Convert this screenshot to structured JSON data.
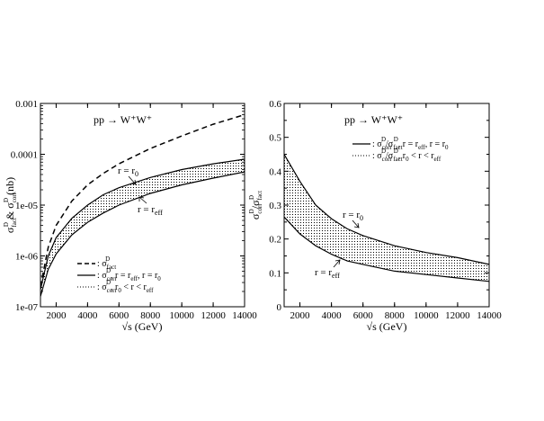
{
  "chart_data": [
    {
      "type": "line",
      "title": "pp → W⁺W⁺",
      "xlabel": "√s (GeV)",
      "ylabel": "σ_fact^D & σ_corr^D (nb)",
      "yscale": "log",
      "xlim": [
        1000,
        14000
      ],
      "ylim": [
        1e-07,
        0.001
      ],
      "x_ticks": [
        2000,
        4000,
        6000,
        8000,
        10000,
        12000,
        14000
      ],
      "x_tick_labels": [
        "2000",
        "4000",
        "6000",
        "8000",
        "10000",
        "12000",
        "14000"
      ],
      "y_ticks": [
        1e-07,
        1e-06,
        1e-05,
        0.0001,
        0.001
      ],
      "y_tick_labels": [
        "1e-07",
        "1e-06",
        "1e-05",
        "0.0001",
        "0.001"
      ],
      "x": [
        1000,
        1500,
        2000,
        3000,
        4000,
        5000,
        6000,
        8000,
        10000,
        12000,
        14000
      ],
      "series": [
        {
          "name": "σ_fact^D",
          "style": "dashed",
          "values": [
            2.5e-07,
            1.5e-06,
            4e-06,
            1.2e-05,
            2.5e-05,
            4.2e-05,
            6.5e-05,
            0.00013,
            0.00023,
            0.00039,
            0.0006
          ]
        },
        {
          "name": "σ_corr^D, r = r_0",
          "style": "solid",
          "values": [
            2.2e-07,
            1e-06,
            2.3e-06,
            5.5e-06,
            1e-05,
            1.6e-05,
            2.2e-05,
            3.5e-05,
            5e-05,
            6.5e-05,
            8e-05
          ]
        },
        {
          "name": "σ_corr^D, r = r_eff",
          "style": "solid",
          "values": [
            1.6e-07,
            5.5e-07,
            1.1e-06,
            2.6e-06,
            4.6e-06,
            7e-06,
            1e-05,
            1.7e-05,
            2.5e-05,
            3.4e-05,
            4.5e-05
          ]
        }
      ],
      "band": {
        "between": [
          "σ_corr^D, r = r_0",
          "σ_corr^D, r = r_eff"
        ],
        "name": "σ_corr^D, r_0 < r < r_eff",
        "style": "dotted"
      },
      "annotations": [
        {
          "text": "r = r_0",
          "x": 6500,
          "y": 2.7e-05
        },
        {
          "text": "r = r_eff",
          "x": 8100,
          "y": 8e-06
        }
      ],
      "legend": {
        "placement": "bottom-right",
        "entries": [
          {
            "style": "dashed",
            "label": "σ_fact^D"
          },
          {
            "style": "solid",
            "label": "σ_corr^D, r = r_eff, r = r_0"
          },
          {
            "style": "dotted",
            "label": "σ_corr^D, r_0 < r < r_eff"
          }
        ]
      }
    },
    {
      "type": "line",
      "title": "pp → W⁺W⁺",
      "xlabel": "√s (GeV)",
      "ylabel": "σ_corr^D / σ_fact^D",
      "yscale": "linear",
      "xlim": [
        1000,
        14000
      ],
      "ylim": [
        0,
        0.6
      ],
      "x_ticks": [
        2000,
        4000,
        6000,
        8000,
        10000,
        12000,
        14000
      ],
      "x_tick_labels": [
        "2000",
        "4000",
        "6000",
        "8000",
        "10000",
        "12000",
        "14000"
      ],
      "y_ticks": [
        0,
        0.1,
        0.2,
        0.3,
        0.4,
        0.5,
        0.6
      ],
      "y_tick_labels": [
        "0",
        "0.1",
        "0.2",
        "0.3",
        "0.4",
        "0.5",
        "0.6"
      ],
      "x": [
        1000,
        2000,
        3000,
        4000,
        5000,
        6000,
        8000,
        10000,
        12000,
        14000
      ],
      "series": [
        {
          "name": "ratio, r = r_0",
          "style": "solid",
          "values": [
            0.45,
            0.37,
            0.3,
            0.26,
            0.23,
            0.21,
            0.18,
            0.16,
            0.145,
            0.125
          ]
        },
        {
          "name": "ratio, r = r_eff",
          "style": "solid",
          "values": [
            0.265,
            0.215,
            0.18,
            0.155,
            0.135,
            0.125,
            0.105,
            0.095,
            0.085,
            0.075
          ]
        }
      ],
      "band": {
        "between": [
          "ratio, r = r_0",
          "ratio, r = r_eff"
        ],
        "name": "σ_corr^D/σ_fact^D, r_0 < r < r_eff",
        "style": "dotted"
      },
      "annotations": [
        {
          "text": "r = r_0",
          "x": 4200,
          "y": 0.265
        },
        {
          "text": "r = r_eff",
          "x": 3100,
          "y": 0.085
        }
      ],
      "legend": {
        "placement": "top-right",
        "entries": [
          {
            "style": "solid",
            "label": "σ_corr^D/σ_fact^D, r = r_eff, r = r_0"
          },
          {
            "style": "dotted",
            "label": "σ_corr^D/σ_fact^D, r_0 < r < r_eff"
          }
        ]
      }
    }
  ]
}
